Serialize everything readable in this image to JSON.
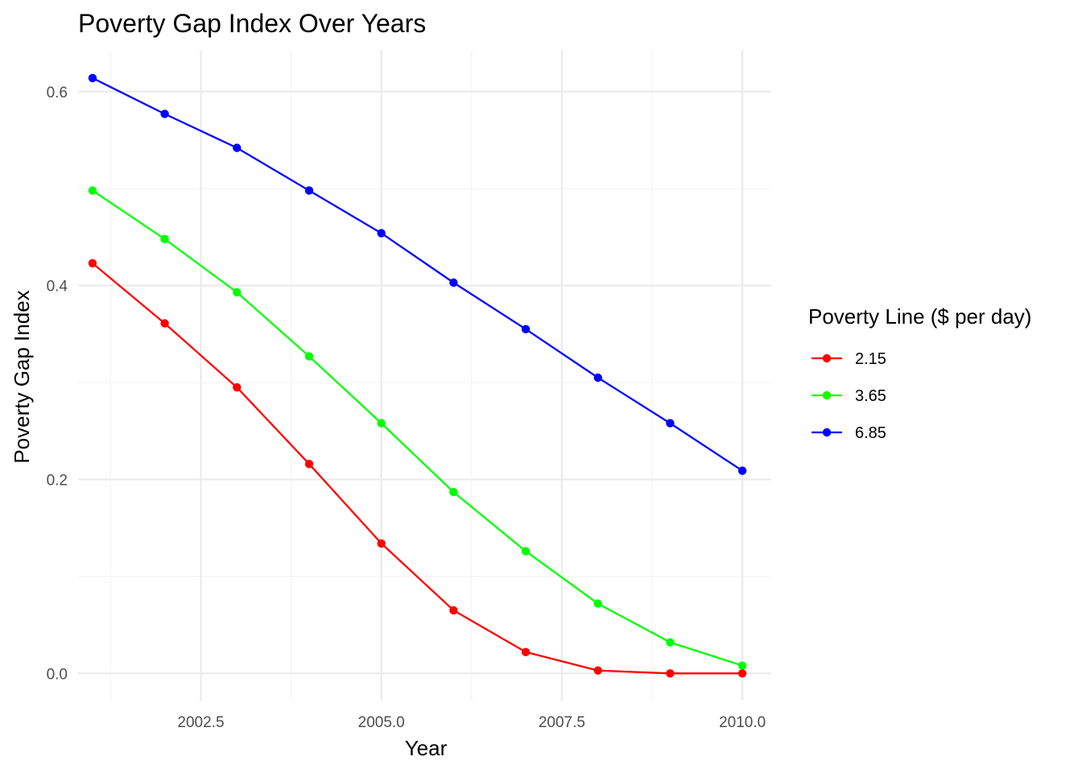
{
  "chart_data": {
    "type": "line",
    "title": "Poverty Gap Index Over Years",
    "xlabel": "Year",
    "ylabel": "Poverty Gap Index",
    "x": [
      2001,
      2002,
      2003,
      2004,
      2005,
      2006,
      2007,
      2008,
      2009,
      2010
    ],
    "xlim": [
      2000.8,
      2010.4
    ],
    "ylim": [
      -0.028,
      0.643
    ],
    "xticks": [
      2002.5,
      2005.0,
      2007.5,
      2010.0
    ],
    "xtick_labels": [
      "2002.5",
      "2005.0",
      "2007.5",
      "2010.0"
    ],
    "yticks": [
      0.0,
      0.2,
      0.4,
      0.6
    ],
    "ytick_labels": [
      "0.0",
      "0.2",
      "0.4",
      "0.6"
    ],
    "grid": true,
    "legend": {
      "title": "Poverty Line ($ per day)",
      "position": "right"
    },
    "series": [
      {
        "name": "2.15",
        "color": "#ff0000",
        "values": [
          0.423,
          0.361,
          0.295,
          0.216,
          0.134,
          0.065,
          0.022,
          0.003,
          0.0,
          0.0
        ]
      },
      {
        "name": "3.65",
        "color": "#00ff00",
        "values": [
          0.498,
          0.448,
          0.393,
          0.327,
          0.258,
          0.187,
          0.126,
          0.072,
          0.032,
          0.008
        ]
      },
      {
        "name": "6.85",
        "color": "#0000ff",
        "values": [
          0.614,
          0.577,
          0.542,
          0.498,
          0.454,
          0.403,
          0.355,
          0.305,
          0.258,
          0.209
        ]
      }
    ]
  }
}
